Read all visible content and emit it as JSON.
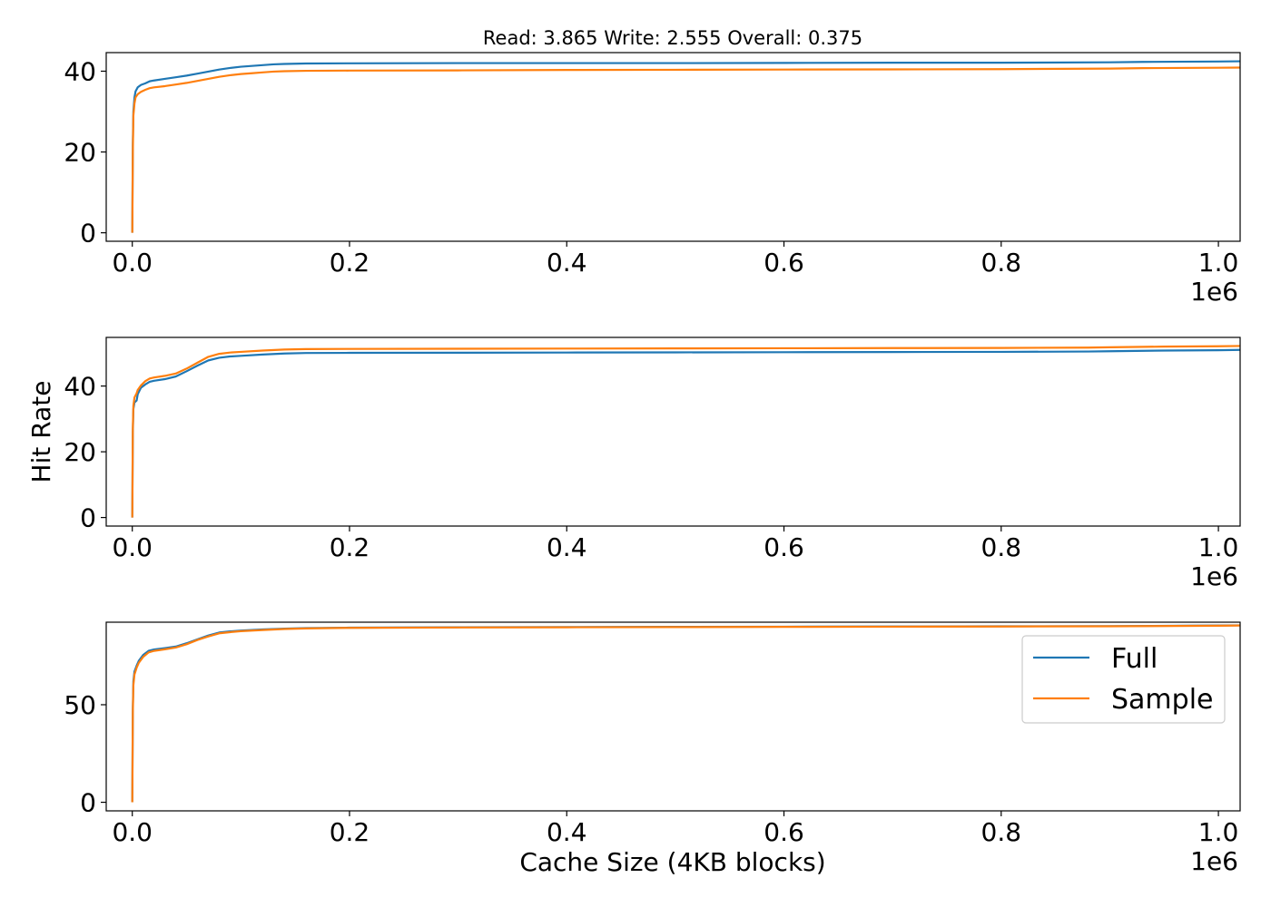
{
  "figure": {
    "title": "Read: 3.865 Write: 2.555 Overall: 0.375",
    "shared_ylabel": "Hit Rate",
    "shared_xlabel": "Cache Size (4KB blocks)",
    "x_offset_text": "1e6"
  },
  "legend": {
    "placement": "lower-right of bottom panel (upper region)",
    "entries": [
      {
        "name": "Full",
        "color": "#1f77b4"
      },
      {
        "name": "Sample",
        "color": "#ff7f0e"
      }
    ]
  },
  "chart_data": [
    {
      "type": "line",
      "panel": "read",
      "title": "Read: 3.865 Write: 2.555 Overall: 0.375",
      "xlabel": "",
      "ylabel": "",
      "xlim": [
        -0.024,
        1.02
      ],
      "ylim": [
        -2.1,
        44.6
      ],
      "x_scale_factor": "1e6",
      "xticks": [
        0.0,
        0.2,
        0.4,
        0.6,
        0.8,
        1.0
      ],
      "xtick_labels": [
        "0.0",
        "0.2",
        "0.4",
        "0.6",
        "0.8",
        "1.0"
      ],
      "yticks": [
        0,
        20,
        40
      ],
      "ytick_labels": [
        "0",
        "20",
        "40"
      ],
      "grid": false,
      "series": [
        {
          "name": "Full",
          "color": "#1f77b4",
          "x": [
            0,
            0.0005,
            0.001,
            0.002,
            0.003,
            0.005,
            0.008,
            0.012,
            0.016,
            0.02,
            0.03,
            0.04,
            0.05,
            0.06,
            0.07,
            0.08,
            0.09,
            0.1,
            0.11,
            0.12,
            0.13,
            0.14,
            0.16,
            0.2,
            0.3,
            0.4,
            0.5,
            0.6,
            0.7,
            0.8,
            0.9,
            0.93,
            1.0,
            1.02
          ],
          "y": [
            0,
            22,
            30,
            33.5,
            35,
            36,
            36.6,
            37,
            37.5,
            37.7,
            38.1,
            38.5,
            38.9,
            39.4,
            39.9,
            40.4,
            40.8,
            41.1,
            41.3,
            41.5,
            41.7,
            41.8,
            41.9,
            41.95,
            42.0,
            42.0,
            42.0,
            42.05,
            42.1,
            42.1,
            42.2,
            42.3,
            42.4,
            42.45
          ]
        },
        {
          "name": "Sample",
          "color": "#ff7f0e",
          "x": [
            0,
            0.0005,
            0.001,
            0.002,
            0.003,
            0.005,
            0.008,
            0.012,
            0.016,
            0.02,
            0.03,
            0.04,
            0.05,
            0.06,
            0.07,
            0.08,
            0.09,
            0.1,
            0.11,
            0.12,
            0.13,
            0.14,
            0.16,
            0.2,
            0.3,
            0.4,
            0.5,
            0.6,
            0.7,
            0.8,
            0.9,
            0.93,
            1.0,
            1.02
          ],
          "y": [
            0,
            20,
            29,
            32,
            33.5,
            34.3,
            34.9,
            35.4,
            35.8,
            36.0,
            36.3,
            36.7,
            37.1,
            37.6,
            38.1,
            38.6,
            39.0,
            39.3,
            39.5,
            39.7,
            39.9,
            40.0,
            40.1,
            40.15,
            40.2,
            40.3,
            40.35,
            40.4,
            40.45,
            40.5,
            40.65,
            40.75,
            40.85,
            40.9
          ]
        }
      ]
    },
    {
      "type": "line",
      "panel": "write",
      "title": "",
      "xlabel": "",
      "ylabel": "Hit Rate",
      "xlim": [
        -0.024,
        1.02
      ],
      "ylim": [
        -2.6,
        54.8
      ],
      "x_scale_factor": "1e6",
      "xticks": [
        0.0,
        0.2,
        0.4,
        0.6,
        0.8,
        1.0
      ],
      "xtick_labels": [
        "0.0",
        "0.2",
        "0.4",
        "0.6",
        "0.8",
        "1.0"
      ],
      "yticks": [
        0,
        20,
        40
      ],
      "ytick_labels": [
        "0",
        "20",
        "40"
      ],
      "grid": false,
      "series": [
        {
          "name": "Full",
          "color": "#1f77b4",
          "x": [
            0,
            0.0005,
            0.001,
            0.002,
            0.004,
            0.005,
            0.008,
            0.012,
            0.016,
            0.02,
            0.03,
            0.04,
            0.05,
            0.06,
            0.07,
            0.08,
            0.09,
            0.1,
            0.12,
            0.14,
            0.16,
            0.2,
            0.3,
            0.4,
            0.5,
            0.6,
            0.7,
            0.8,
            0.88,
            0.9,
            0.95,
            1.0,
            1.02
          ],
          "y": [
            0,
            26,
            33,
            35,
            35.6,
            37.5,
            39.5,
            40.5,
            41.3,
            41.6,
            42.1,
            42.9,
            44.5,
            46.2,
            47.8,
            48.6,
            49.0,
            49.2,
            49.6,
            49.9,
            50.05,
            50.1,
            50.15,
            50.2,
            50.25,
            50.3,
            50.35,
            50.4,
            50.5,
            50.6,
            50.8,
            50.9,
            51.0
          ]
        },
        {
          "name": "Sample",
          "color": "#ff7f0e",
          "x": [
            0,
            0.0005,
            0.001,
            0.002,
            0.004,
            0.005,
            0.008,
            0.012,
            0.016,
            0.02,
            0.03,
            0.04,
            0.05,
            0.06,
            0.07,
            0.08,
            0.09,
            0.1,
            0.12,
            0.14,
            0.16,
            0.2,
            0.3,
            0.4,
            0.5,
            0.6,
            0.7,
            0.8,
            0.88,
            0.9,
            0.95,
            1.0,
            1.02
          ],
          "y": [
            0,
            27,
            34,
            36.5,
            37.8,
            38.8,
            40.2,
            41.5,
            42.3,
            42.6,
            43.1,
            43.8,
            45.3,
            47.1,
            48.9,
            49.8,
            50.2,
            50.4,
            50.8,
            51.1,
            51.25,
            51.3,
            51.35,
            51.4,
            51.45,
            51.5,
            51.55,
            51.6,
            51.7,
            51.8,
            52.0,
            52.1,
            52.2
          ]
        }
      ]
    },
    {
      "type": "line",
      "panel": "overall",
      "title": "",
      "xlabel": "Cache Size (4KB blocks)",
      "ylabel": "",
      "xlim": [
        -0.024,
        1.02
      ],
      "ylim": [
        -4.4,
        92.3
      ],
      "x_scale_factor": "1e6",
      "xticks": [
        0.0,
        0.2,
        0.4,
        0.6,
        0.8,
        1.0
      ],
      "xtick_labels": [
        "0.0",
        "0.2",
        "0.4",
        "0.6",
        "0.8",
        "1.0"
      ],
      "yticks": [
        0,
        50
      ],
      "ytick_labels": [
        "0",
        "50"
      ],
      "grid": false,
      "legend_placement": "upper-right",
      "series": [
        {
          "name": "Full",
          "color": "#1f77b4",
          "x": [
            0,
            0.0005,
            0.001,
            0.002,
            0.004,
            0.006,
            0.01,
            0.015,
            0.02,
            0.03,
            0.04,
            0.05,
            0.06,
            0.07,
            0.08,
            0.09,
            0.1,
            0.12,
            0.14,
            0.16,
            0.2,
            0.3,
            0.4,
            0.5,
            0.6,
            0.7,
            0.8,
            0.9,
            1.0,
            1.02
          ],
          "y": [
            0,
            48,
            62,
            67,
            70,
            72.5,
            75.5,
            77.6,
            78.3,
            79.0,
            79.8,
            81.5,
            83.5,
            85.5,
            87.0,
            87.6,
            88.0,
            88.6,
            89.0,
            89.3,
            89.5,
            89.7,
            89.8,
            89.9,
            90.0,
            90.1,
            90.2,
            90.3,
            90.6,
            90.7
          ]
        },
        {
          "name": "Sample",
          "color": "#ff7f0e",
          "x": [
            0,
            0.0005,
            0.001,
            0.002,
            0.004,
            0.006,
            0.01,
            0.015,
            0.02,
            0.03,
            0.04,
            0.05,
            0.06,
            0.07,
            0.08,
            0.09,
            0.1,
            0.12,
            0.14,
            0.16,
            0.2,
            0.3,
            0.4,
            0.5,
            0.6,
            0.7,
            0.8,
            0.9,
            1.0,
            1.02
          ],
          "y": [
            0,
            46,
            60,
            65.5,
            69,
            71.5,
            74.5,
            76.8,
            77.6,
            78.4,
            79.3,
            81.0,
            83.2,
            85.0,
            86.6,
            87.2,
            87.7,
            88.3,
            88.8,
            89.1,
            89.4,
            89.6,
            89.7,
            89.8,
            89.9,
            90.0,
            90.1,
            90.2,
            90.5,
            90.6
          ]
        }
      ]
    }
  ]
}
